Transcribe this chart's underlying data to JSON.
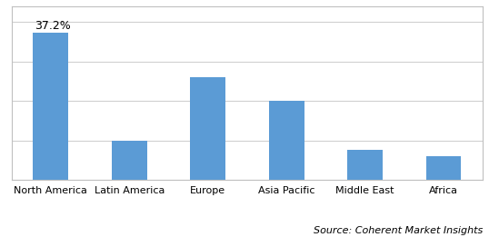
{
  "categories": [
    "North America",
    "Latin America",
    "Europe",
    "Asia Pacific",
    "Middle East",
    "Africa"
  ],
  "values": [
    37.2,
    10.0,
    26.0,
    20.0,
    7.5,
    6.0
  ],
  "bar_color": "#5b9bd5",
  "annotation_label": "37.2%",
  "annotation_bar_index": 0,
  "source_text": "Source: Coherent Market Insights",
  "ylim": [
    0,
    44
  ],
  "yticks": [
    0,
    10,
    20,
    30,
    40
  ],
  "grid_color": "#d0d0d0",
  "background_color": "#ffffff",
  "bar_width": 0.45,
  "annotation_fontsize": 9,
  "source_fontsize": 8,
  "tick_fontsize": 8,
  "border_color": "#c0c0c0"
}
